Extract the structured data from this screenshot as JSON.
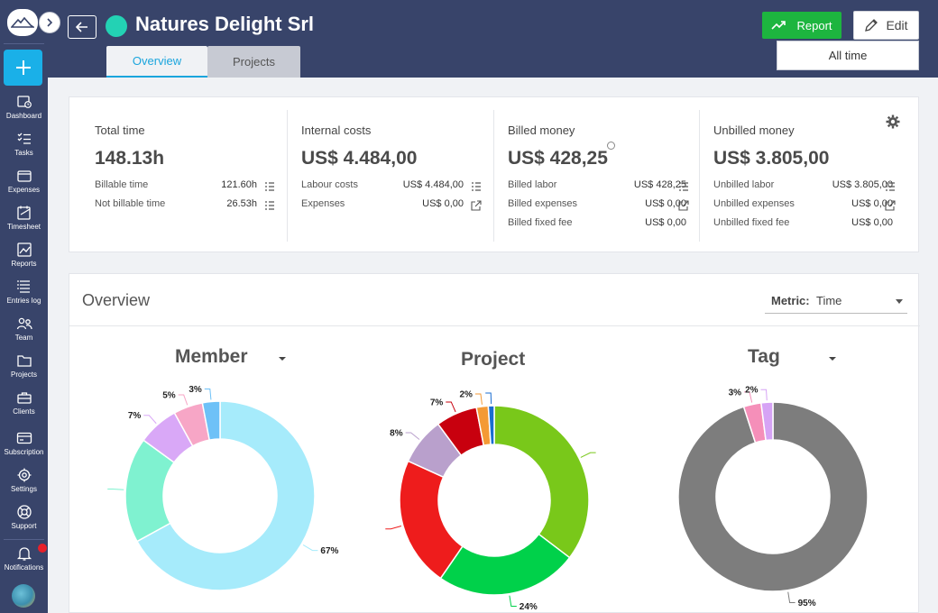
{
  "sidebar": {
    "items": [
      {
        "label": "Dashboard",
        "icon": "dashboard-icon"
      },
      {
        "label": "Tasks",
        "icon": "tasks-icon"
      },
      {
        "label": "Expenses",
        "icon": "expenses-icon"
      },
      {
        "label": "Timesheet",
        "icon": "timesheet-icon"
      },
      {
        "label": "Reports",
        "icon": "reports-icon"
      },
      {
        "label": "Entries log",
        "icon": "entries-log-icon"
      },
      {
        "label": "Team",
        "icon": "team-icon"
      },
      {
        "label": "Projects",
        "icon": "projects-icon"
      },
      {
        "label": "Clients",
        "icon": "clients-icon"
      },
      {
        "label": "Subscription",
        "icon": "subscription-icon"
      },
      {
        "label": "Settings",
        "icon": "settings-icon"
      },
      {
        "label": "Support",
        "icon": "support-icon"
      },
      {
        "label": "Notifications",
        "icon": "bell-icon"
      }
    ]
  },
  "header": {
    "title": "Natures Delight Srl",
    "tabs": [
      {
        "label": "Overview",
        "active": true
      },
      {
        "label": "Projects",
        "active": false
      }
    ],
    "report_label": "Report",
    "edit_label": "Edit",
    "range_label": "All time"
  },
  "stats": [
    {
      "label": "Total time",
      "value": "148.13h",
      "rows": [
        {
          "label": "Billable time",
          "value": "121.60h",
          "icon": "list-icon"
        },
        {
          "label": "Not billable time",
          "value": "26.53h",
          "icon": "list-icon"
        }
      ]
    },
    {
      "label": "Internal costs",
      "value": "US$ 4.484,00",
      "rows": [
        {
          "label": "Labour costs",
          "value": "US$ 4.484,00",
          "icon": "list-icon"
        },
        {
          "label": "Expenses",
          "value": "US$ 0,00",
          "icon": "external-link-icon"
        }
      ]
    },
    {
      "label": "Billed money",
      "value": "US$ 428,25",
      "rows": [
        {
          "label": "Billed labor",
          "value": "US$ 428,25",
          "icon": "list-icon"
        },
        {
          "label": "Billed expenses",
          "value": "US$ 0,00",
          "icon": "external-link-icon"
        },
        {
          "label": "Billed fixed fee",
          "value": "US$ 0,00",
          "icon": ""
        }
      ]
    },
    {
      "label": "Unbilled money",
      "value": "US$ 3.805,00",
      "rows": [
        {
          "label": "Unbilled labor",
          "value": "US$ 3.805,00",
          "icon": "list-icon"
        },
        {
          "label": "Unbilled expenses",
          "value": "US$ 0,00",
          "icon": "external-link-icon"
        },
        {
          "label": "Unbilled fixed fee",
          "value": "US$ 0,00",
          "icon": ""
        }
      ]
    }
  ],
  "overview": {
    "title": "Overview",
    "metric_label": "Metric:",
    "metric_value": "Time"
  },
  "chart_data": [
    {
      "type": "pie",
      "title": "Member",
      "has_dropdown": true,
      "slices": [
        {
          "value": 67,
          "label": "67%",
          "color": "#a6ebfb"
        },
        {
          "value": 18,
          "label": "",
          "color": "#7ff2d0"
        },
        {
          "value": 7,
          "label": "7%",
          "color": "#d9a8f7"
        },
        {
          "value": 5,
          "label": "5%",
          "color": "#f7a6c6"
        },
        {
          "value": 3,
          "label": "3%",
          "color": "#6ec1f7"
        }
      ]
    },
    {
      "type": "pie",
      "title": "Project",
      "has_dropdown": false,
      "slices": [
        {
          "value": 35,
          "label": "",
          "color": "#79c81a"
        },
        {
          "value": 24,
          "label": "24%",
          "color": "#00d14a"
        },
        {
          "value": 22,
          "label": "",
          "color": "#ee1c1c"
        },
        {
          "value": 8,
          "label": "8%",
          "color": "#b9a0cc"
        },
        {
          "value": 7,
          "label": "7%",
          "color": "#c8000e"
        },
        {
          "value": 2,
          "label": "2%",
          "color": "#f49a35"
        },
        {
          "value": 1,
          "label": "",
          "color": "#1a6dd0"
        }
      ]
    },
    {
      "type": "pie",
      "title": "Tag",
      "has_dropdown": true,
      "slices": [
        {
          "value": 95,
          "label": "95%",
          "color": "#7d7d7d"
        },
        {
          "value": 3,
          "label": "3%",
          "color": "#f58fb9"
        },
        {
          "value": 2,
          "label": "2%",
          "color": "#d6a3f5"
        }
      ]
    }
  ]
}
